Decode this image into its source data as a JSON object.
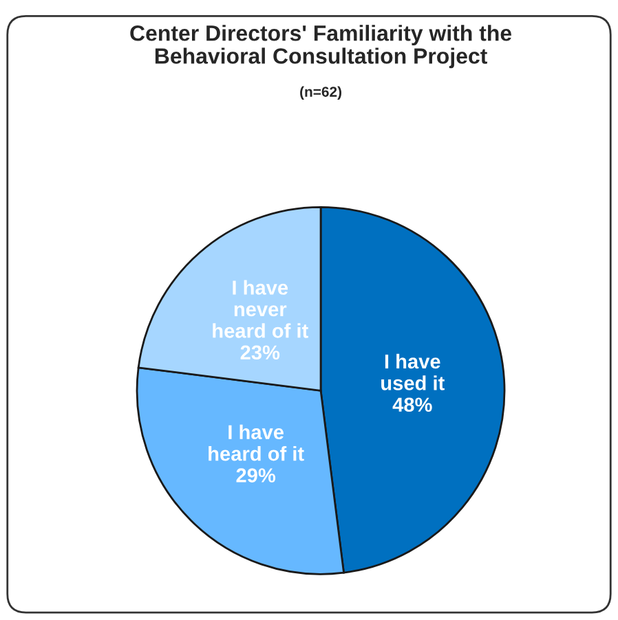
{
  "chart_data": {
    "type": "pie",
    "title": "Center Directors' Familiarity with the\nBehavioral Consultation Project",
    "subtitle": "(n=62)",
    "categories": [
      "I have\nused it",
      "I have\nheard of it",
      "I have\nnever\nheard of it"
    ],
    "values": [
      48,
      29,
      23
    ],
    "value_labels": [
      "48%",
      "29%",
      "23%"
    ],
    "colors": [
      "#0070c0",
      "#66b8ff",
      "#a6d6ff"
    ]
  }
}
